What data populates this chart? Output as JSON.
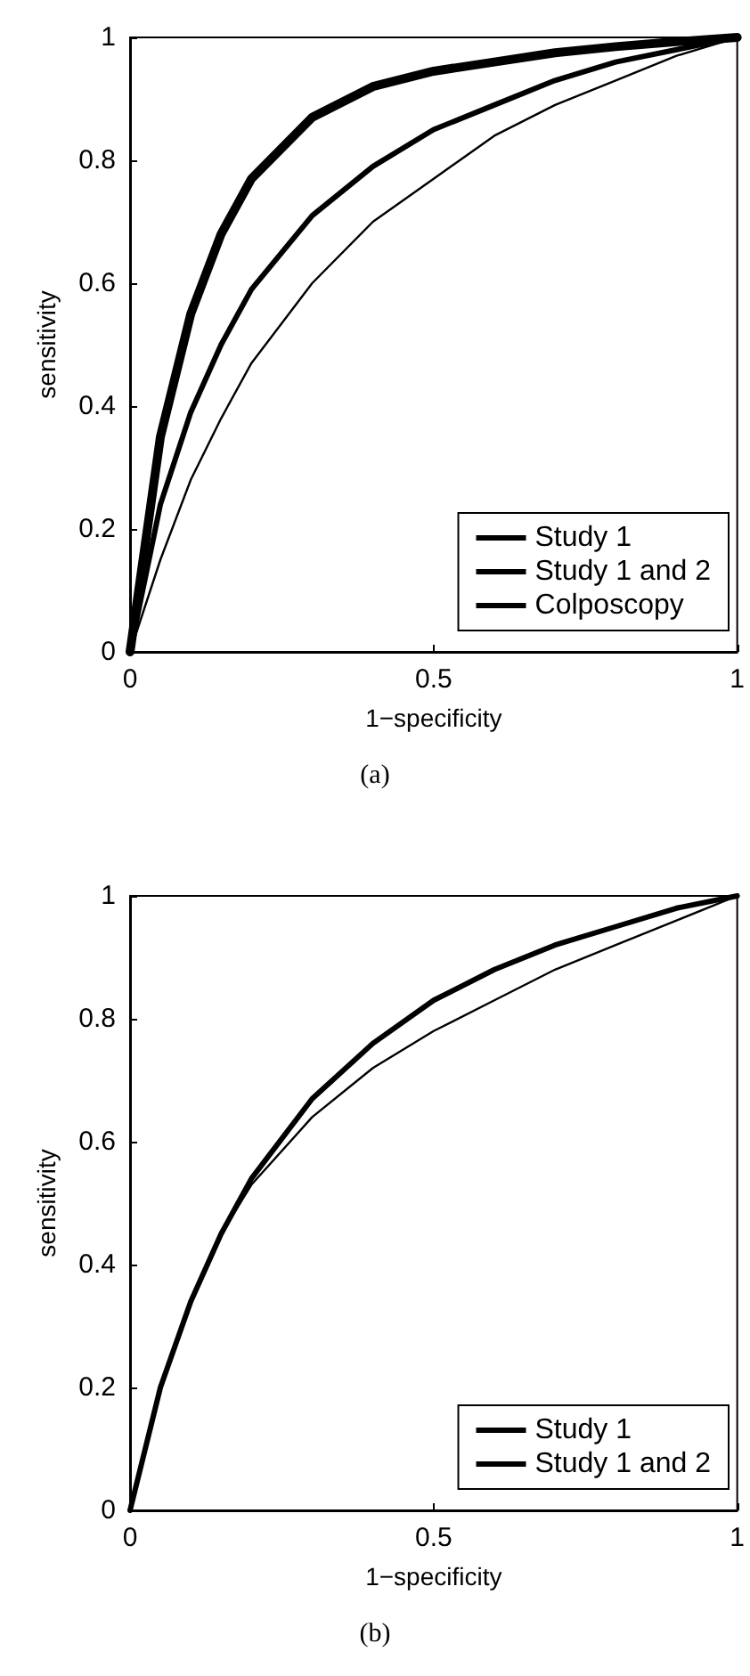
{
  "chart_data": [
    {
      "type": "line",
      "xlabel": "1−specificity",
      "ylabel": "sensitivity",
      "annotations": [
        "(a)"
      ],
      "x": [
        0,
        0.05,
        0.1,
        0.15,
        0.2,
        0.3,
        0.4,
        0.5,
        0.6,
        0.7,
        0.8,
        0.9,
        1
      ],
      "xlim": [
        0,
        1
      ],
      "ylim": [
        0,
        1
      ],
      "xticks": [
        0,
        0.5,
        1
      ],
      "yticks": [
        0,
        0.2,
        0.4,
        0.6,
        0.8,
        1
      ],
      "legend": "bottom right",
      "grid": false,
      "marker": "none",
      "line_style": "solid",
      "series": [
        {
          "name": "Study 1",
          "color": "#000000",
          "values": [
            0,
            0.15,
            0.28,
            0.38,
            0.47,
            0.6,
            0.7,
            0.77,
            0.84,
            0.89,
            0.93,
            0.97,
            1
          ]
        },
        {
          "name": "Study 1 and 2",
          "color": "#000000",
          "values": [
            0,
            0.24,
            0.39,
            0.5,
            0.59,
            0.71,
            0.79,
            0.85,
            0.89,
            0.93,
            0.96,
            0.98,
            1
          ]
        },
        {
          "name": "Colposcopy",
          "color": "#000000",
          "values": [
            0,
            0.35,
            0.55,
            0.68,
            0.77,
            0.87,
            0.92,
            0.945,
            0.96,
            0.975,
            0.985,
            0.993,
            1
          ]
        }
      ]
    },
    {
      "type": "line",
      "xlabel": "1−specificity",
      "ylabel": "sensitivity",
      "annotations": [
        "(b)"
      ],
      "x": [
        0,
        0.05,
        0.1,
        0.15,
        0.2,
        0.3,
        0.4,
        0.5,
        0.6,
        0.7,
        0.8,
        0.9,
        1
      ],
      "xlim": [
        0,
        1
      ],
      "ylim": [
        0,
        1
      ],
      "xticks": [
        0,
        0.5,
        1
      ],
      "yticks": [
        0,
        0.2,
        0.4,
        0.6,
        0.8,
        1
      ],
      "legend": "bottom right",
      "grid": false,
      "marker": "none",
      "line_style": "solid",
      "series": [
        {
          "name": "Study 1",
          "color": "#000000",
          "values": [
            0,
            0.2,
            0.34,
            0.45,
            0.53,
            0.64,
            0.72,
            0.78,
            0.83,
            0.88,
            0.92,
            0.96,
            1
          ]
        },
        {
          "name": "Study 1 and 2",
          "color": "#000000",
          "values": [
            0,
            0.2,
            0.34,
            0.45,
            0.54,
            0.67,
            0.76,
            0.83,
            0.88,
            0.92,
            0.95,
            0.98,
            1
          ]
        }
      ]
    }
  ]
}
